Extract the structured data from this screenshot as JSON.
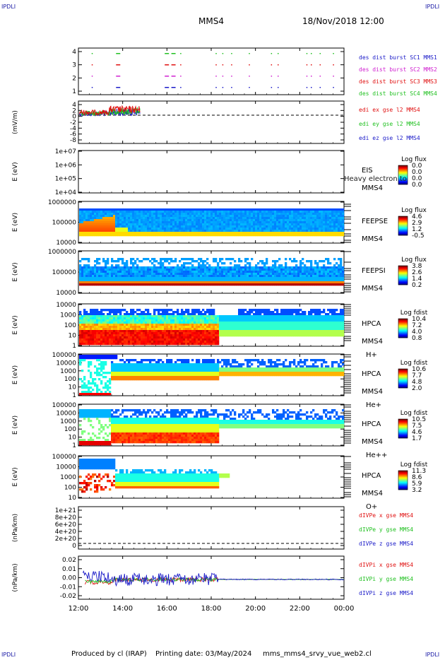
{
  "header": {
    "mission": "MMS4",
    "date": "18/Nov/2018 12:00"
  },
  "corners": {
    "tl": "IPDLI",
    "tr": "IPDLI",
    "bl": "IPDLI",
    "br": "IPDLI"
  },
  "footer": {
    "produced": "Produced by cl (IRAP)",
    "printing": "Printing date: 03/May/2024",
    "script": "mms_mms4_srvy_vue_web2.cl"
  },
  "colors": {
    "blue": "#1a1ac8",
    "magenta": "#d020d0",
    "red": "#e01010",
    "green": "#20c020"
  },
  "chart_data": [
    {
      "id": "p1",
      "type": "scatter",
      "ylabel": "",
      "yticks": [
        "1",
        "2",
        "3",
        "4"
      ],
      "legend": [
        {
          "text": "des dist burst SC1 MMS1",
          "color": "#1a1ac8"
        },
        {
          "text": "des dist burst SC2 MMS2",
          "color": "#d020d0"
        },
        {
          "text": "des dist burst SC3 MMS3",
          "color": "#e01010"
        },
        {
          "text": "des dist burst SC4 MMS4",
          "color": "#20c020"
        }
      ]
    },
    {
      "id": "p2",
      "type": "line",
      "ylabel": "(mV/m)",
      "yticks": [
        "-8",
        "-6",
        "-4",
        "-2",
        "0",
        "2",
        "4"
      ],
      "legend": [
        {
          "text": "edi ex gse l2 MMS4",
          "color": "#e01010"
        },
        {
          "text": "edi ey gse l2 MMS4",
          "color": "#20c020"
        },
        {
          "text": "edi ez gse l2 MMS4",
          "color": "#1a1ac8"
        }
      ]
    },
    {
      "id": "p3",
      "type": "heatmap",
      "ylabel": "E (eV)",
      "yticks": [
        "1e+04",
        "1e+05",
        "1e+06",
        "1e+07"
      ],
      "labels": [
        "EIS",
        "MMS4"
      ],
      "overlay": "Heavy electron to",
      "cbar_title": "Log flux",
      "cbar_ticks": [
        "0.0",
        "0.0",
        "0.0",
        "0.0"
      ]
    },
    {
      "id": "p4",
      "type": "heatmap",
      "ylabel": "E (eV)",
      "yticks": [
        "10000",
        "100000",
        "1000000"
      ],
      "labels": [
        "FEEPSE",
        "MMS4"
      ],
      "cbar_title": "Log flux",
      "cbar_ticks": [
        "4.6",
        "2.9",
        "1.2",
        "-0.5"
      ]
    },
    {
      "id": "p5",
      "type": "heatmap",
      "ylabel": "E (eV)",
      "yticks": [
        "10000",
        "100000",
        "1000000"
      ],
      "labels": [
        "FEEPSI",
        "MMS4"
      ],
      "cbar_title": "Log flux",
      "cbar_ticks": [
        "3.8",
        "2.6",
        "1.4",
        "0.2"
      ]
    },
    {
      "id": "p6",
      "type": "heatmap",
      "ylabel": "E (eV)",
      "yticks": [
        "1",
        "10",
        "100",
        "1000",
        "10000"
      ],
      "labels": [
        "HPCA",
        "MMS4",
        "H+"
      ],
      "cbar_title": "Log fdist",
      "cbar_ticks": [
        "10.4",
        "7.2",
        "4.0",
        "0.8"
      ]
    },
    {
      "id": "p7",
      "type": "heatmap",
      "ylabel": "E (eV)",
      "yticks": [
        "1",
        "10",
        "100",
        "1000",
        "10000",
        "100000"
      ],
      "labels": [
        "HPCA",
        "MMS4",
        "He+"
      ],
      "cbar_title": "Log fdist",
      "cbar_ticks": [
        "10.6",
        "7.7",
        "4.8",
        "2.0"
      ]
    },
    {
      "id": "p8",
      "type": "heatmap",
      "ylabel": "E (eV)",
      "yticks": [
        "1",
        "10",
        "100",
        "1000",
        "10000",
        "100000"
      ],
      "labels": [
        "HPCA",
        "MMS4",
        "He++"
      ],
      "cbar_title": "Log fdist",
      "cbar_ticks": [
        "10.5",
        "7.5",
        "4.6",
        "1.7"
      ]
    },
    {
      "id": "p9",
      "type": "heatmap",
      "ylabel": "E (eV)",
      "yticks": [
        "10",
        "100",
        "1000",
        "10000",
        "100000"
      ],
      "labels": [
        "HPCA",
        "MMS4",
        "O+"
      ],
      "cbar_title": "Log fdist",
      "cbar_ticks": [
        "11.3",
        "8.6",
        "5.9",
        "3.2"
      ]
    },
    {
      "id": "p10",
      "type": "line",
      "ylabel": "(nPa/km)",
      "yticks": [
        "0",
        "2e+20",
        "4e+20",
        "6e+20",
        "8e+20",
        "1e+21"
      ],
      "legend": [
        {
          "text": "dIVPe x gse MMS4",
          "color": "#e01010"
        },
        {
          "text": "dIVPe y gse MMS4",
          "color": "#20c020"
        },
        {
          "text": "dIVPe z gse MMS4",
          "color": "#1a1ac8"
        }
      ]
    },
    {
      "id": "p11",
      "type": "line",
      "ylabel": "(nPa/km)",
      "yticks": [
        "-0.02",
        "-0.01",
        "0.00",
        "0.01",
        "0.02"
      ],
      "legend": [
        {
          "text": "dIVPi x gse MMS4",
          "color": "#e01010"
        },
        {
          "text": "dIVPi y gse MMS4",
          "color": "#20c020"
        },
        {
          "text": "dIVPi z gse MMS4",
          "color": "#1a1ac8"
        }
      ]
    }
  ],
  "xaxis": {
    "ticks": [
      "12:00",
      "14:00",
      "16:00",
      "18:00",
      "20:00",
      "22:00",
      "00:00"
    ]
  }
}
